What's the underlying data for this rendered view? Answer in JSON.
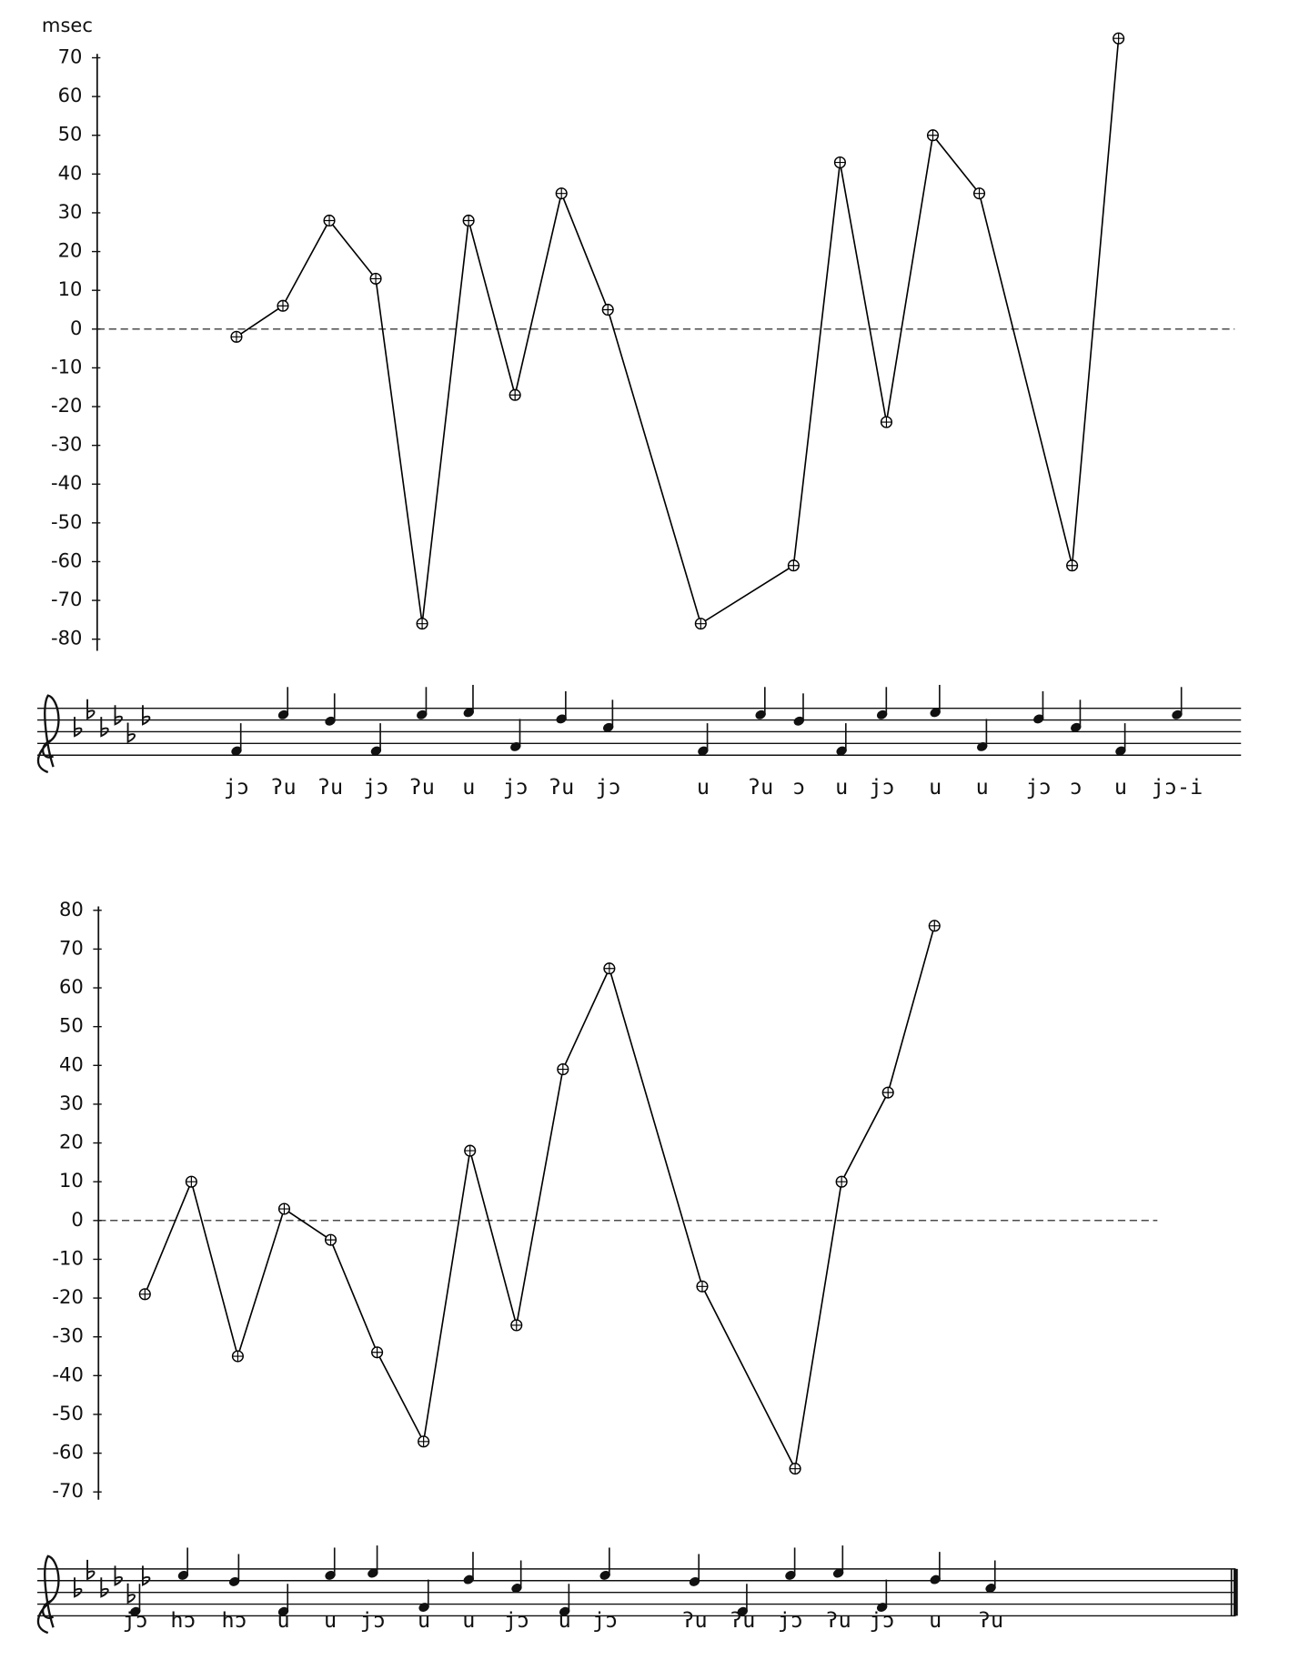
{
  "chart_data": [
    {
      "type": "line",
      "ylabel": "msec",
      "color": "#000000",
      "x": [
        0,
        1,
        2,
        3,
        4,
        5,
        6,
        7,
        8,
        10,
        12,
        13,
        14,
        15,
        16,
        18,
        19
      ],
      "values": [
        -2,
        6,
        28,
        13,
        -76,
        28,
        -17,
        35,
        5,
        -76,
        -61,
        43,
        -24,
        50,
        35,
        -61,
        75
      ],
      "xlim": [
        -3,
        21.5
      ],
      "ylim": [
        -83,
        71
      ],
      "yticks": [
        70,
        60,
        50,
        40,
        30,
        20,
        10,
        0,
        -10,
        -20,
        -30,
        -40,
        -50,
        -60,
        -70,
        -80
      ],
      "lyrics": [
        "jɔ",
        "ʔu",
        "ʔu",
        "jɔ",
        "ʔu",
        "u",
        "jɔ",
        "ʔu",
        "jɔ",
        "u",
        "ʔu",
        "ɔ",
        "u",
        "jɔ",
        "u",
        "u",
        "jɔ",
        "ɔ",
        "u",
        "jɔ-i"
      ]
    },
    {
      "type": "line",
      "color": "#000000",
      "x": [
        0,
        1,
        2,
        3,
        4,
        5,
        6,
        7,
        8,
        9,
        10,
        12,
        14,
        15,
        16,
        17
      ],
      "values": [
        -19,
        10,
        -35,
        3,
        -5,
        -34,
        -57,
        18,
        -27,
        39,
        65,
        -17,
        -64,
        10,
        33,
        76
      ],
      "xlim": [
        -1,
        21.8
      ],
      "ylim": [
        -72,
        81
      ],
      "yticks": [
        80,
        70,
        60,
        50,
        40,
        30,
        20,
        10,
        0,
        -10,
        -20,
        -30,
        -40,
        -50,
        -60,
        -70
      ],
      "lyrics": [
        "jɔ",
        "hɔ",
        "hɔ",
        "u",
        "u",
        "jɔ",
        "u",
        "u",
        "jɔ",
        "u",
        "jɔ",
        "ʔu",
        "ʔu",
        "jɔ",
        "ʔu",
        "jɔ",
        "u",
        "ʔu"
      ]
    }
  ]
}
